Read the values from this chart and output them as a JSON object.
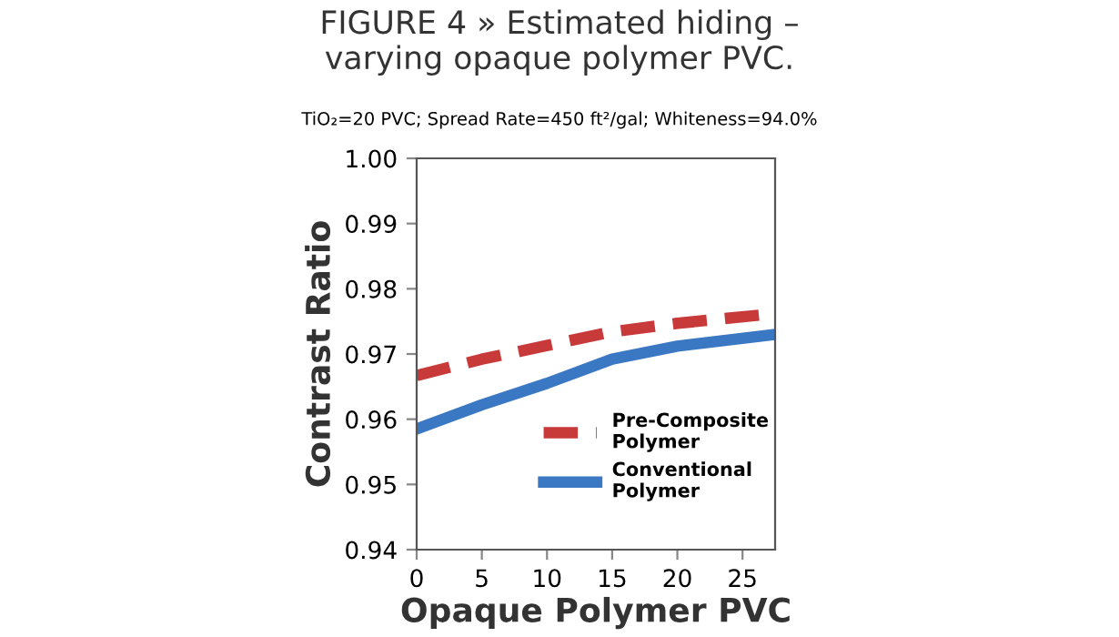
{
  "chart_data": {
    "type": "line",
    "title": "FIGURE 4 » Estimated hiding –\nvarying opaque polymer PVC.",
    "subtitle": "TiO₂=20 PVC; Spread Rate=450 ft²/gal; Whiteness=94.0%",
    "xlabel": "Opaque Polymer PVC",
    "ylabel": "Contrast Ratio",
    "x": [
      0,
      5,
      10,
      15,
      20,
      27.5
    ],
    "series": [
      {
        "name": "Pre-Composite\nPolymer",
        "color": "#c83a3a",
        "line_style": "dashed",
        "values": [
          0.9667,
          0.9692,
          0.9713,
          0.9734,
          0.9747,
          0.9762
        ]
      },
      {
        "name": "Conventional\nPolymer",
        "color": "#3a78c3",
        "line_style": "solid",
        "values": [
          0.9585,
          0.9622,
          0.9655,
          0.9692,
          0.9712,
          0.973
        ]
      }
    ],
    "xlim": [
      0,
      27.5
    ],
    "xticks": [
      0,
      5,
      10,
      15,
      20,
      25
    ],
    "ylim": [
      0.94,
      1.0
    ],
    "yticks": [
      {
        "value": 0.94,
        "label": "0.94"
      },
      {
        "value": 0.95,
        "label": "0.95"
      },
      {
        "value": 0.96,
        "label": "0.96"
      },
      {
        "value": 0.97,
        "label": "0.97"
      },
      {
        "value": 0.98,
        "label": "0.98"
      },
      {
        "value": 0.99,
        "label": "0.99"
      },
      {
        "value": 1.0,
        "label": "1.00"
      }
    ],
    "grid": false,
    "legend": "bottom right",
    "marker": "none"
  }
}
